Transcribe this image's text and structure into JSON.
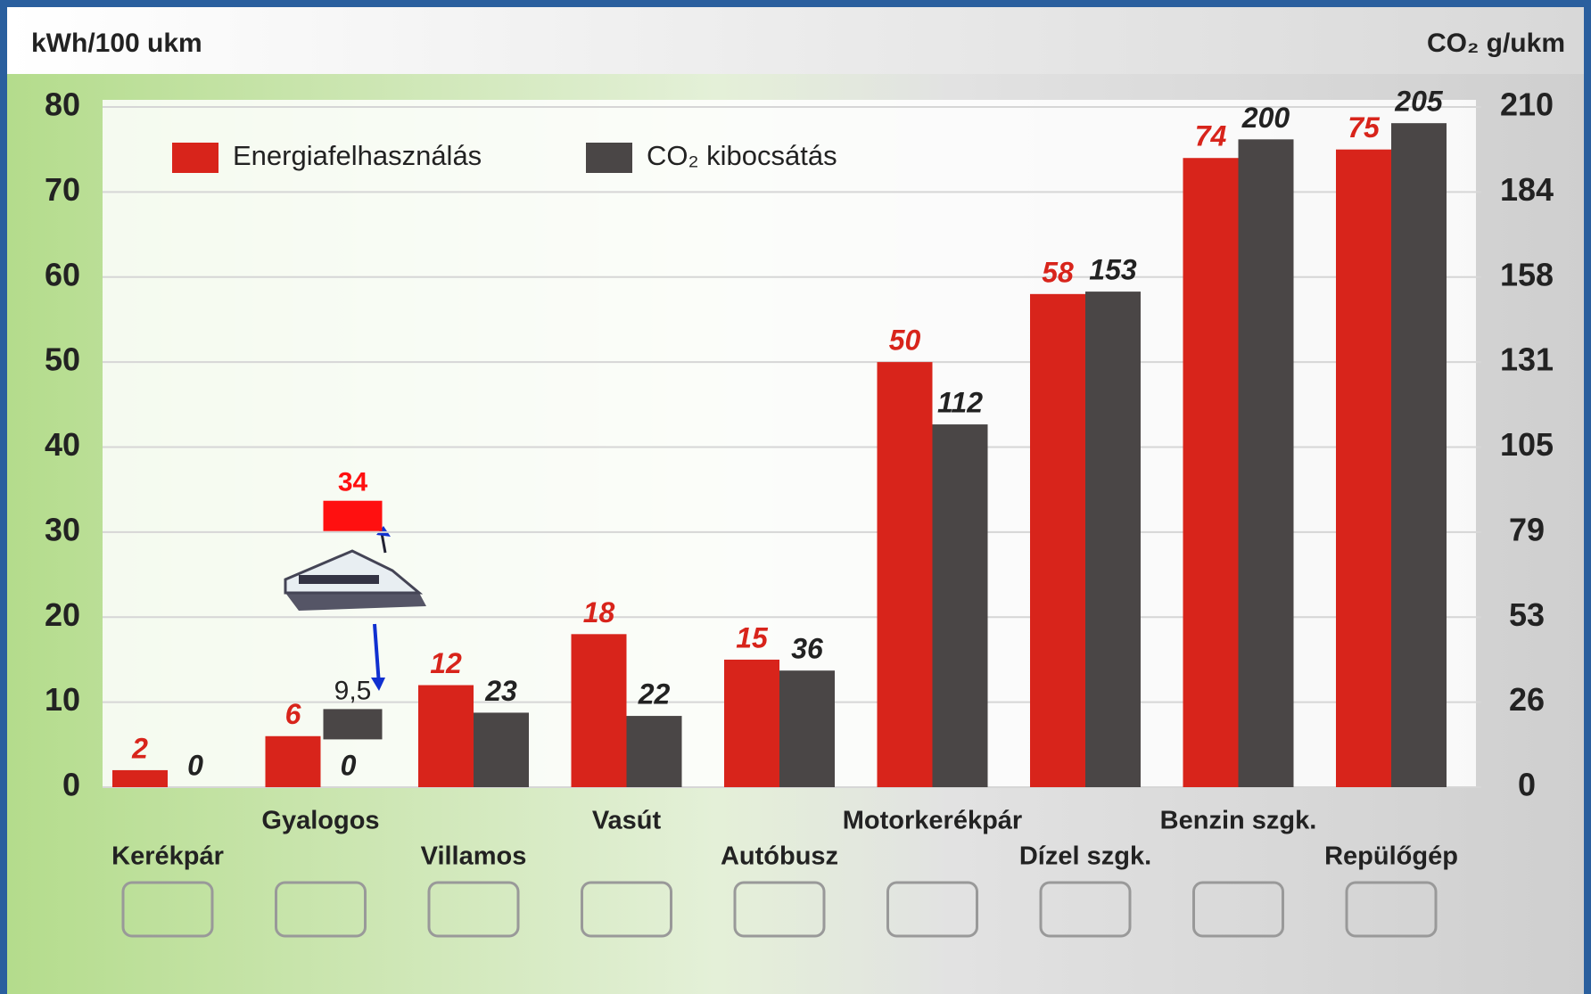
{
  "chart_data": {
    "type": "bar",
    "y_label": "kWh/100 ukm",
    "y2_label": "CO₂ g/ukm",
    "categories": [
      "Kerékpár",
      "Gyalogos",
      "Villamos",
      "Vasút",
      "Autóbusz",
      "Motorkerékpár",
      "Dízel szgk.",
      "Benzin szgk.",
      "Repülőgép"
    ],
    "series": [
      {
        "name": "Energiafelhasználás",
        "color": "#d8241b",
        "values": [
          2,
          6,
          12,
          18,
          15,
          50,
          58,
          74,
          75
        ]
      },
      {
        "name": "CO₂ kibocsátás",
        "color": "#4a4646",
        "axis": "y2",
        "values": [
          0,
          0,
          23,
          22,
          36,
          112,
          153,
          200,
          205
        ]
      }
    ],
    "ylim": [
      0,
      80
    ],
    "yticks": [
      0,
      10,
      20,
      30,
      40,
      50,
      60,
      70,
      80
    ],
    "y2lim": [
      0,
      210
    ],
    "y2ticks": [
      0,
      {
        "value": 26.25,
        "label": "26"
      },
      {
        "value": 52.5,
        "label": "53"
      },
      {
        "value": 78.75,
        "label": "79"
      },
      105,
      {
        "value": 131.25,
        "label": "131"
      },
      {
        "value": 157.5,
        "label": "158"
      },
      {
        "value": 183.75,
        "label": "184"
      },
      210
    ],
    "grid": true,
    "legend": "top-left",
    "boat": {
      "values": [
        34,
        9.5
      ],
      "value_labels": [
        "34",
        "9,5"
      ],
      "colors": [
        "#ff1010",
        "#4a4646"
      ]
    }
  }
}
